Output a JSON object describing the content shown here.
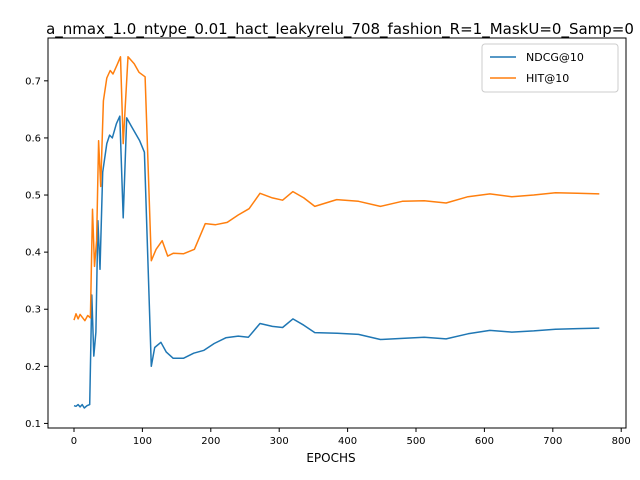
{
  "chart_data": {
    "type": "line",
    "title": "a_nmax_1.0_ntype_0.01_hact_leakyrelu_708_fashion_R=1_MaskU=0_Samp=0",
    "xlabel": "EPOCHS",
    "ylabel": "",
    "xlim": [
      -38,
      807
    ],
    "ylim": [
      0.092,
      0.775
    ],
    "xticks": [
      0,
      100,
      200,
      300,
      400,
      500,
      600,
      700,
      800
    ],
    "yticks": [
      0.1,
      0.2,
      0.3,
      0.4,
      0.5,
      0.6,
      0.7
    ],
    "grid": false,
    "legend_position": "top-right",
    "series": [
      {
        "name": "NDCG@10",
        "color": "#1f77b4",
        "points": [
          [
            0,
            0.131
          ],
          [
            3,
            0.13
          ],
          [
            6,
            0.133
          ],
          [
            9,
            0.129
          ],
          [
            12,
            0.133
          ],
          [
            15,
            0.127
          ],
          [
            19,
            0.131
          ],
          [
            23,
            0.133
          ],
          [
            26,
            0.325
          ],
          [
            29,
            0.218
          ],
          [
            32,
            0.26
          ],
          [
            35,
            0.455
          ],
          [
            38,
            0.37
          ],
          [
            42,
            0.54
          ],
          [
            48,
            0.59
          ],
          [
            52,
            0.605
          ],
          [
            56,
            0.6
          ],
          [
            62,
            0.625
          ],
          [
            67,
            0.638
          ],
          [
            72,
            0.46
          ],
          [
            77,
            0.635
          ],
          [
            84,
            0.62
          ],
          [
            96,
            0.595
          ],
          [
            103,
            0.575
          ],
          [
            113,
            0.2
          ],
          [
            118,
            0.233
          ],
          [
            127,
            0.242
          ],
          [
            135,
            0.225
          ],
          [
            145,
            0.214
          ],
          [
            160,
            0.214
          ],
          [
            175,
            0.223
          ],
          [
            190,
            0.228
          ],
          [
            205,
            0.24
          ],
          [
            222,
            0.25
          ],
          [
            240,
            0.253
          ],
          [
            255,
            0.251
          ],
          [
            272,
            0.275
          ],
          [
            290,
            0.27
          ],
          [
            305,
            0.268
          ],
          [
            320,
            0.283
          ],
          [
            336,
            0.272
          ],
          [
            352,
            0.259
          ],
          [
            385,
            0.258
          ],
          [
            416,
            0.256
          ],
          [
            448,
            0.247
          ],
          [
            480,
            0.249
          ],
          [
            512,
            0.251
          ],
          [
            544,
            0.248
          ],
          [
            576,
            0.257
          ],
          [
            608,
            0.263
          ],
          [
            640,
            0.26
          ],
          [
            672,
            0.262
          ],
          [
            704,
            0.265
          ],
          [
            736,
            0.266
          ],
          [
            768,
            0.267
          ]
        ]
      },
      {
        "name": "HIT@10",
        "color": "#ff7f0e",
        "points": [
          [
            0,
            0.281
          ],
          [
            3,
            0.292
          ],
          [
            6,
            0.283
          ],
          [
            9,
            0.291
          ],
          [
            12,
            0.286
          ],
          [
            16,
            0.28
          ],
          [
            20,
            0.289
          ],
          [
            24,
            0.285
          ],
          [
            27,
            0.475
          ],
          [
            30,
            0.375
          ],
          [
            33,
            0.42
          ],
          [
            36,
            0.595
          ],
          [
            39,
            0.515
          ],
          [
            43,
            0.665
          ],
          [
            48,
            0.705
          ],
          [
            53,
            0.718
          ],
          [
            57,
            0.712
          ],
          [
            63,
            0.728
          ],
          [
            68,
            0.742
          ],
          [
            72,
            0.59
          ],
          [
            79,
            0.742
          ],
          [
            88,
            0.73
          ],
          [
            95,
            0.715
          ],
          [
            104,
            0.707
          ],
          [
            113,
            0.385
          ],
          [
            120,
            0.405
          ],
          [
            129,
            0.42
          ],
          [
            137,
            0.393
          ],
          [
            145,
            0.398
          ],
          [
            160,
            0.397
          ],
          [
            176,
            0.405
          ],
          [
            192,
            0.45
          ],
          [
            207,
            0.448
          ],
          [
            224,
            0.452
          ],
          [
            240,
            0.465
          ],
          [
            256,
            0.476
          ],
          [
            272,
            0.503
          ],
          [
            290,
            0.495
          ],
          [
            305,
            0.491
          ],
          [
            320,
            0.506
          ],
          [
            336,
            0.495
          ],
          [
            352,
            0.48
          ],
          [
            384,
            0.492
          ],
          [
            416,
            0.489
          ],
          [
            448,
            0.48
          ],
          [
            480,
            0.489
          ],
          [
            512,
            0.49
          ],
          [
            544,
            0.486
          ],
          [
            576,
            0.497
          ],
          [
            608,
            0.502
          ],
          [
            640,
            0.497
          ],
          [
            672,
            0.5
          ],
          [
            704,
            0.504
          ],
          [
            736,
            0.503
          ],
          [
            768,
            0.502
          ]
        ]
      }
    ]
  }
}
